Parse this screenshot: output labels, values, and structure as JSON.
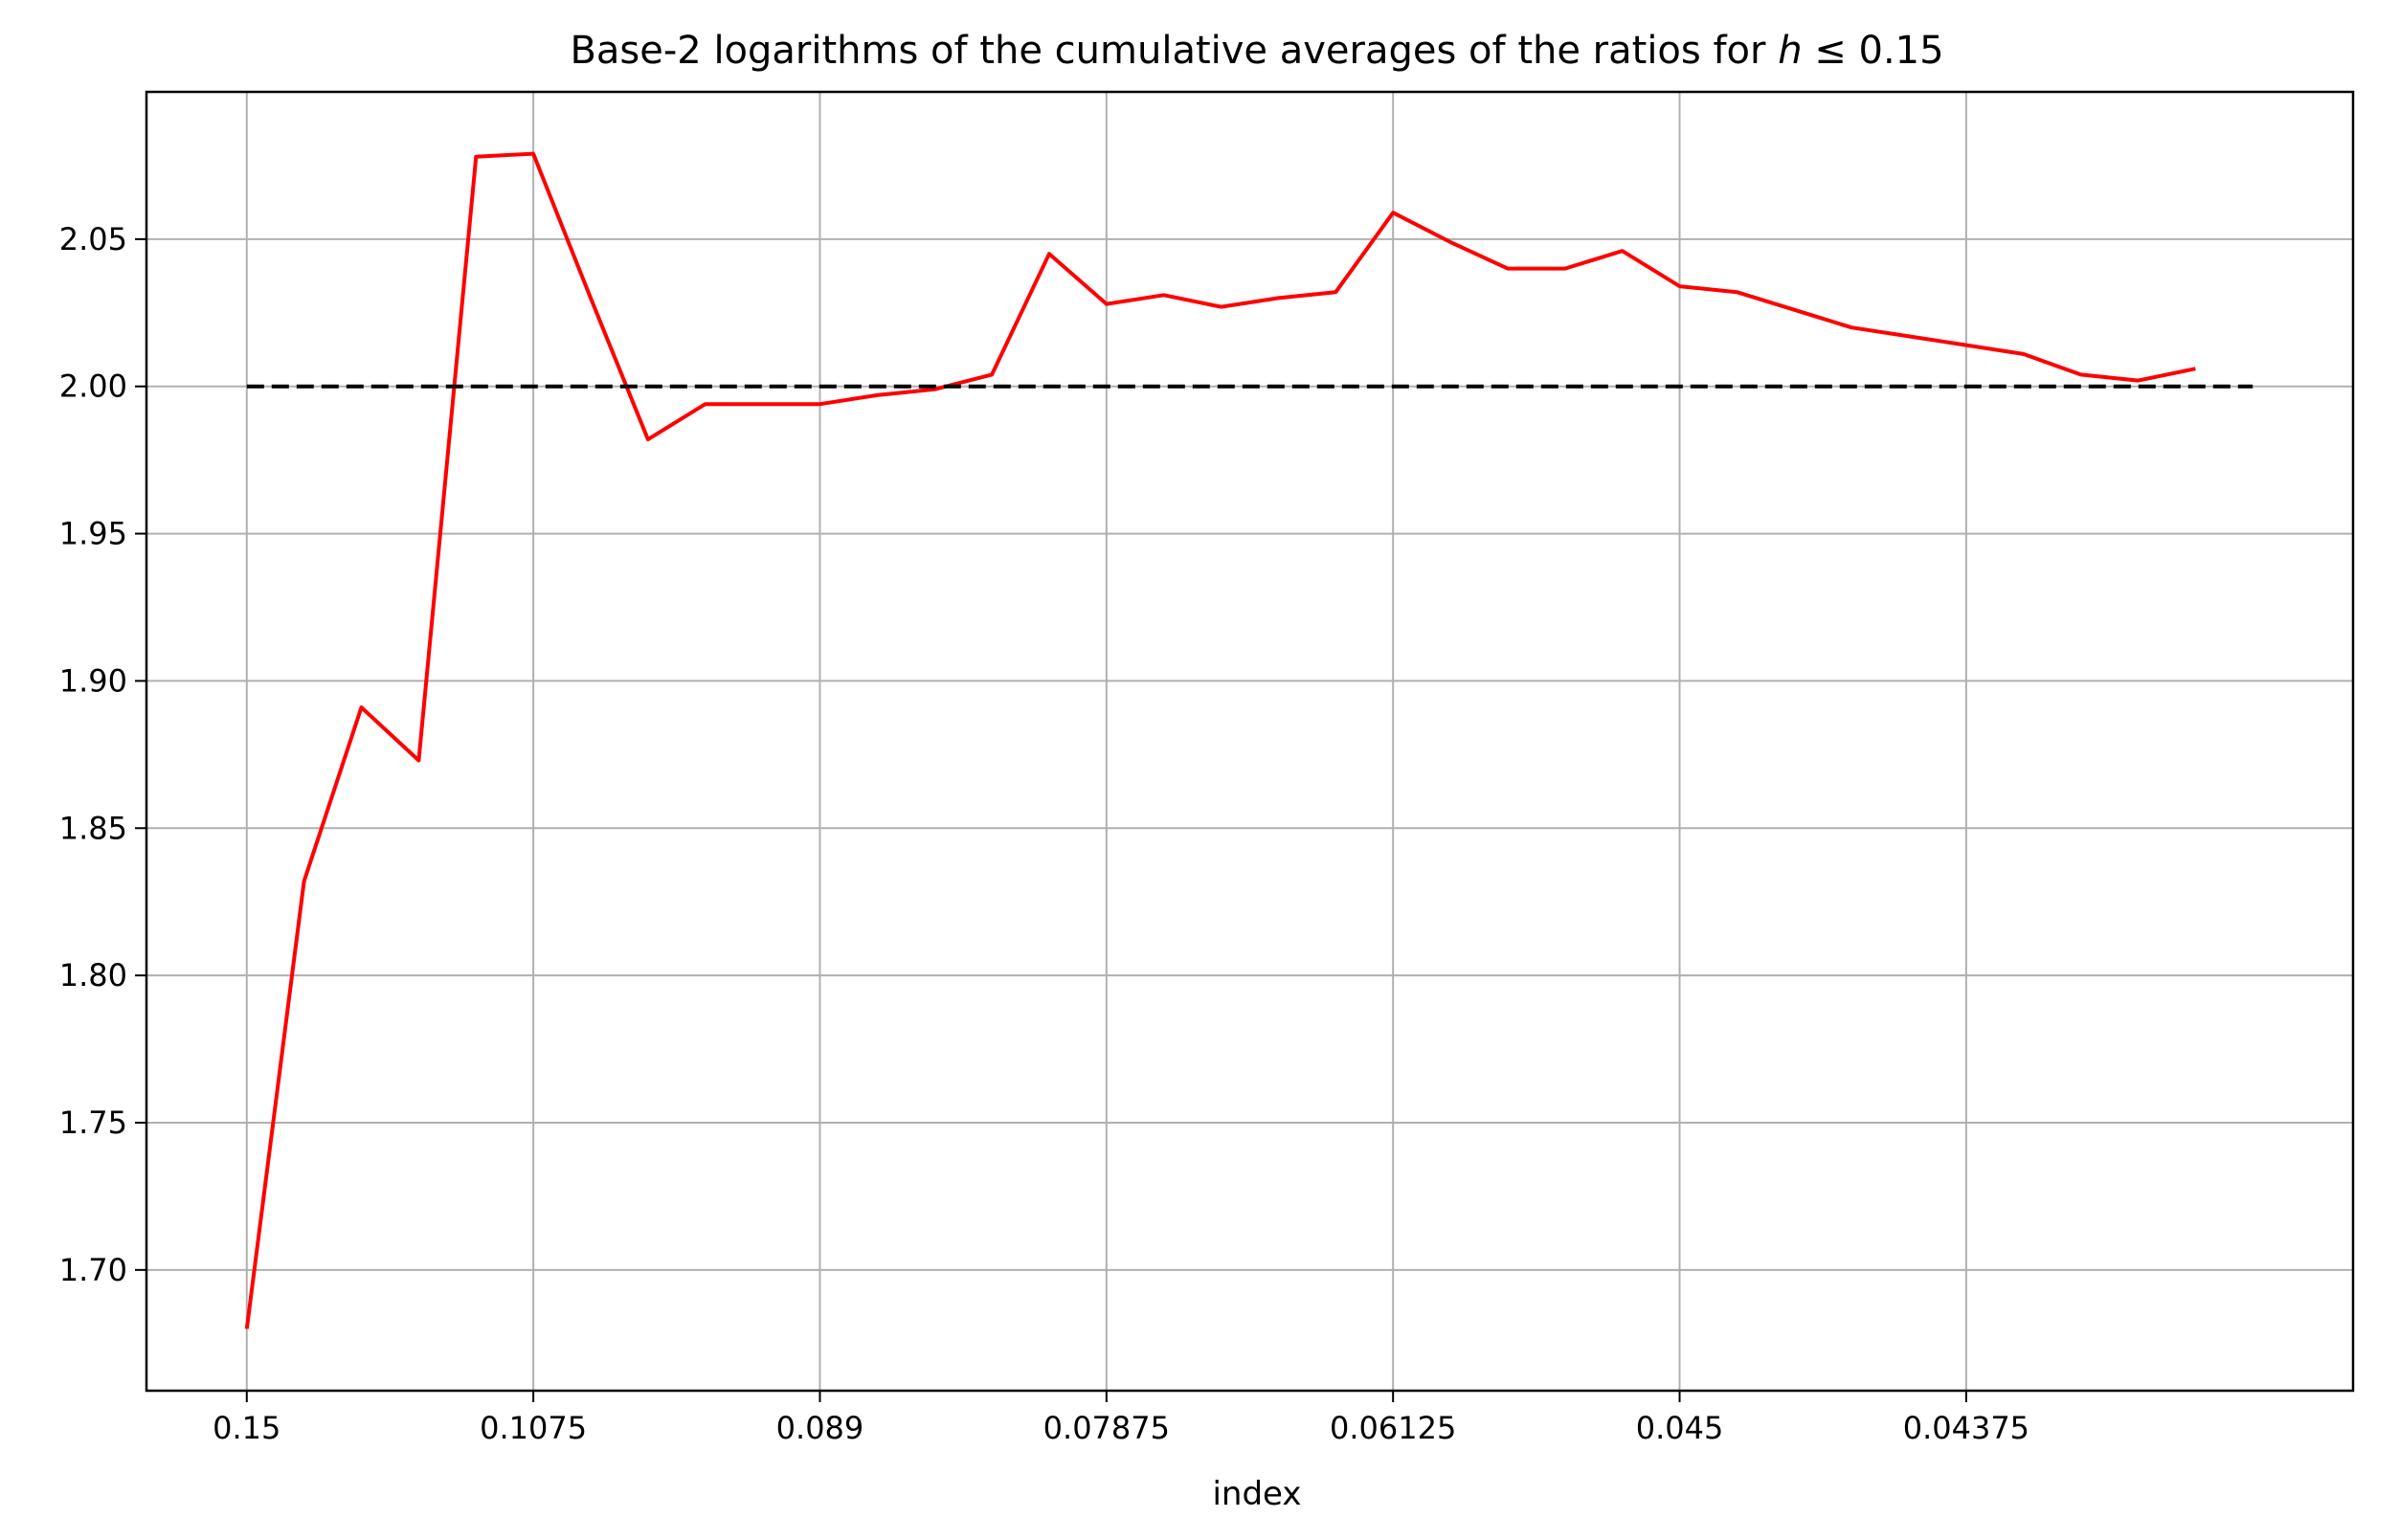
{
  "chart_data": {
    "type": "line",
    "title": "Base-2 logarithms of the cumulative averages of the ratios for h ≤ 0.15",
    "title_prefix": "Base-2 logarithms of the cumulative averages of the ratios for ",
    "title_math_var": "h",
    "title_math_rest": " ≤ 0.15",
    "xlabel": "index",
    "ylabel": "",
    "x_tick_labels": [
      "0.15",
      "0.1075",
      "0.089",
      "0.07875",
      "0.06125",
      "0.045",
      "0.04375"
    ],
    "x_tick_indices": [
      0,
      5,
      10,
      15,
      20,
      25,
      30
    ],
    "y_ticks": [
      1.7,
      1.75,
      1.8,
      1.85,
      1.9,
      1.95,
      2.0,
      2.05
    ],
    "y_tick_labels": [
      "1.70",
      "1.75",
      "1.80",
      "1.85",
      "1.90",
      "1.95",
      "2.00",
      "2.05"
    ],
    "xlim": [
      -1.75,
      36.75
    ],
    "ylim": [
      1.659,
      2.1
    ],
    "grid": true,
    "series": [
      {
        "color": "#ff0000",
        "style": "solid",
        "x": [
          0,
          1,
          2,
          3,
          4,
          5,
          6,
          7,
          8,
          9,
          10,
          11,
          12,
          13,
          14,
          15,
          16,
          17,
          18,
          19,
          20,
          21,
          22,
          23,
          24,
          25,
          26,
          27,
          28,
          29,
          30,
          31,
          32,
          33,
          34
        ],
        "values": [
          1.68,
          1.832,
          1.891,
          1.873,
          2.078,
          2.079,
          2.03,
          1.982,
          1.994,
          1.994,
          1.994,
          1.997,
          1.999,
          2.004,
          2.045,
          2.028,
          2.031,
          2.027,
          2.03,
          2.032,
          2.059,
          2.049,
          2.04,
          2.04,
          2.046,
          2.034,
          2.032,
          2.026,
          2.02,
          2.017,
          2.014,
          2.011,
          2.004,
          2.002,
          2.006
        ]
      },
      {
        "color": "#000000",
        "style": "dashed",
        "x": [
          0,
          35
        ],
        "values": [
          2.0,
          2.0
        ]
      }
    ]
  }
}
